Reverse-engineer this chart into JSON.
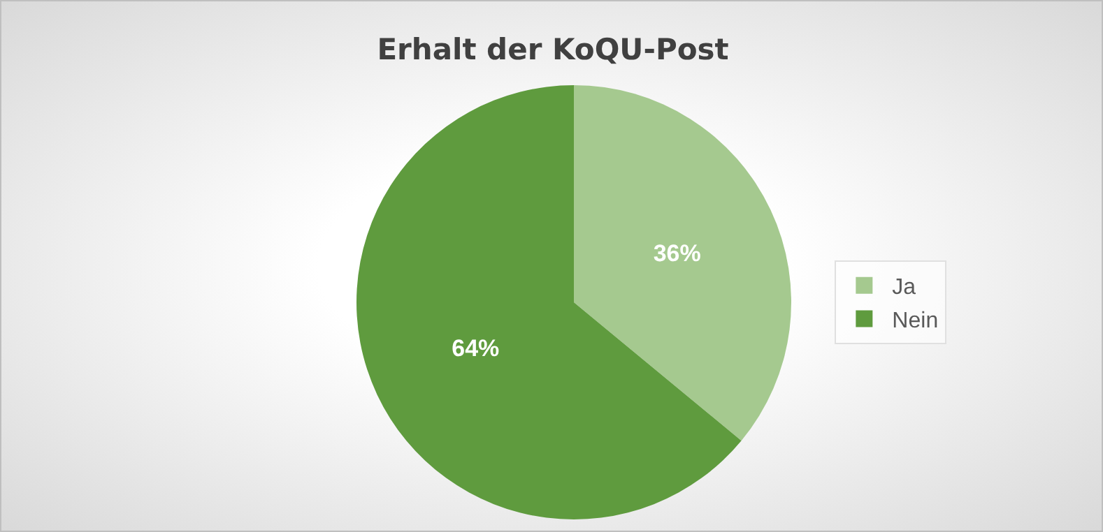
{
  "chart_data": {
    "type": "pie",
    "title": "Erhalt der KoQU-Post",
    "categories": [
      "Ja",
      "Nein"
    ],
    "values": [
      36,
      64
    ],
    "colors": [
      "#a5c98f",
      "#5f9b3e"
    ],
    "value_labels": [
      "36%",
      "64%"
    ],
    "legend": "right"
  }
}
